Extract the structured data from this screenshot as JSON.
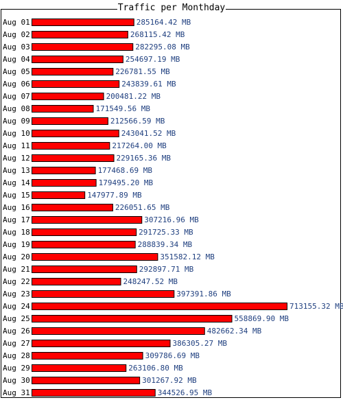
{
  "chart_data": {
    "type": "bar",
    "orientation": "horizontal",
    "title": "Traffic per Monthday",
    "unit": "MB",
    "categories": [
      "Aug 01",
      "Aug 02",
      "Aug 03",
      "Aug 04",
      "Aug 05",
      "Aug 06",
      "Aug 07",
      "Aug 08",
      "Aug 09",
      "Aug 10",
      "Aug 11",
      "Aug 12",
      "Aug 13",
      "Aug 14",
      "Aug 15",
      "Aug 16",
      "Aug 17",
      "Aug 18",
      "Aug 19",
      "Aug 20",
      "Aug 21",
      "Aug 22",
      "Aug 23",
      "Aug 24",
      "Aug 25",
      "Aug 26",
      "Aug 27",
      "Aug 28",
      "Aug 29",
      "Aug 30",
      "Aug 31"
    ],
    "values": [
      285164.42,
      268115.42,
      282295.08,
      254697.19,
      226781.55,
      243839.61,
      200481.22,
      171549.56,
      212566.59,
      243041.52,
      217264.0,
      229165.36,
      177468.69,
      179495.2,
      147977.89,
      226051.65,
      307216.96,
      291725.33,
      288839.34,
      351582.12,
      292897.71,
      248247.52,
      397391.86,
      713155.32,
      558869.9,
      482662.34,
      386305.27,
      309786.69,
      263106.8,
      301267.92,
      344526.95
    ],
    "value_labels": [
      "285164.42 MB",
      "268115.42 MB",
      "282295.08 MB",
      "254697.19 MB",
      "226781.55 MB",
      "243839.61 MB",
      "200481.22 MB",
      "171549.56 MB",
      "212566.59 MB",
      "243041.52 MB",
      "217264.00 MB",
      "229165.36 MB",
      "177468.69 MB",
      "179495.20 MB",
      "147977.89 MB",
      "226051.65 MB",
      "307216.96 MB",
      "291725.33 MB",
      "288839.34 MB",
      "351582.12 MB",
      "292897.71 MB",
      "248247.52 MB",
      "397391.86 MB",
      "713155.32 MB",
      "558869.90 MB",
      "482662.34 MB",
      "386305.27 MB",
      "309786.69 MB",
      "263106.80 MB",
      "301267.92 MB",
      "344526.95 MB"
    ],
    "grid": false,
    "legend": "none",
    "colors": {
      "bar_fill": "#ff0000",
      "bar_stroke": "#000000",
      "value_label": "#1f3f7f",
      "category_label": "#000000"
    }
  }
}
